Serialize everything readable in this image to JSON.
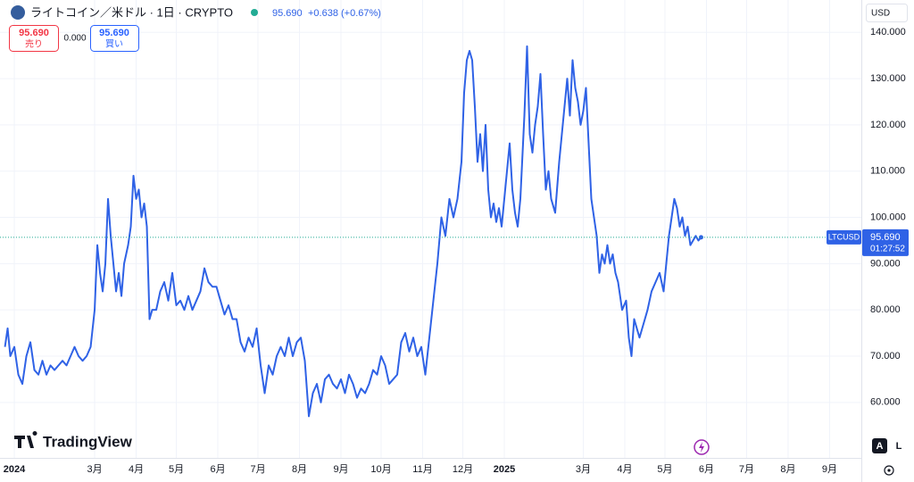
{
  "header": {
    "title": "ライトコイン／米ドル · 1日 · CRYPTO",
    "price": "95.690",
    "change": "+0.638 (+0.67%)"
  },
  "trade": {
    "sell_price": "95.690",
    "sell_label": "売り",
    "spread": "0.000",
    "buy_price": "95.690",
    "buy_label": "買い"
  },
  "currency": "USD",
  "branding": "TradingView",
  "buttons": [
    "A",
    "L"
  ],
  "chart_data": {
    "type": "line",
    "series": [
      {
        "name": "LTCUSD",
        "color": "#2f62e6",
        "values": [
          72,
          76,
          70,
          72,
          66,
          64,
          70,
          73,
          67,
          66,
          69,
          66,
          68,
          67,
          68,
          69,
          68,
          70,
          72,
          70,
          69,
          70,
          72,
          80,
          94,
          88,
          84,
          90,
          104,
          96,
          90,
          84,
          88,
          83,
          90,
          94,
          98,
          109,
          104,
          106,
          100,
          103,
          98,
          78,
          80,
          80,
          84,
          86,
          82,
          88,
          81,
          82,
          80,
          83,
          80,
          82,
          84,
          89,
          86,
          85,
          85,
          82,
          79,
          81,
          78,
          78,
          73,
          71,
          74,
          72,
          76,
          68,
          62,
          68,
          66,
          70,
          72,
          70,
          74,
          70,
          73,
          74,
          69,
          57,
          62,
          64,
          60,
          65,
          66,
          64,
          63,
          65,
          62,
          66,
          64,
          61,
          63,
          62,
          64,
          67,
          66,
          70,
          68,
          64,
          65,
          66,
          73,
          75,
          71,
          74,
          70,
          72,
          66,
          74,
          82,
          90,
          100,
          96,
          104,
          100,
          104,
          112,
          127,
          134,
          136,
          134,
          124,
          112,
          118,
          110,
          120,
          106,
          100,
          103,
          99,
          102,
          98,
          104,
          110,
          116,
          106,
          101,
          98,
          104,
          122,
          137,
          118,
          114,
          120,
          124,
          131,
          118,
          106,
          110,
          104,
          101,
          112,
          118,
          124,
          130,
          122,
          134,
          128,
          125,
          120,
          123,
          128,
          116,
          104,
          100,
          96,
          88,
          92,
          90,
          94,
          90,
          92,
          88,
          86,
          80,
          82,
          74,
          70,
          78,
          76,
          74,
          77,
          80,
          84,
          86,
          88,
          84,
          90,
          96,
          100,
          104,
          102,
          98,
          100,
          96,
          98,
          94,
          95,
          96,
          95,
          95.69
        ]
      }
    ],
    "x": [
      -7,
      -5,
      -3,
      0,
      3,
      6,
      9,
      12,
      15,
      18,
      21,
      24,
      27,
      30,
      33,
      36,
      39,
      42,
      45,
      48,
      51,
      54,
      57,
      60,
      62,
      64,
      66,
      68,
      70,
      72,
      74,
      76,
      78,
      80,
      82,
      85,
      87,
      89,
      91,
      93,
      95,
      97,
      99,
      101,
      103,
      106,
      109,
      112,
      115,
      118,
      121,
      124,
      127,
      130,
      133,
      136,
      139,
      142,
      145,
      148,
      151,
      154,
      157,
      160,
      163,
      166,
      169,
      172,
      175,
      178,
      181,
      184,
      187,
      190,
      193,
      196,
      199,
      202,
      205,
      208,
      211,
      214,
      217,
      220,
      223,
      226,
      229,
      232,
      235,
      238,
      241,
      244,
      247,
      250,
      253,
      256,
      259,
      262,
      265,
      268,
      271,
      274,
      277,
      280,
      283,
      286,
      289,
      292,
      295,
      298,
      301,
      304,
      307,
      310,
      313,
      316,
      319,
      322,
      325,
      328,
      331,
      334,
      336,
      338,
      340,
      342,
      344,
      346,
      348,
      350,
      352,
      354,
      356,
      358,
      360,
      362,
      364,
      366,
      368,
      370,
      372,
      374,
      376,
      378,
      381,
      383,
      385,
      387,
      389,
      391,
      393,
      395,
      397,
      399,
      401,
      404,
      407,
      409,
      411,
      413,
      415,
      417,
      419,
      421,
      423,
      425,
      427,
      429,
      431,
      433,
      435,
      437,
      439,
      441,
      443,
      445,
      447,
      449,
      451,
      454,
      457,
      459,
      461,
      463,
      465,
      467,
      470,
      473,
      476,
      479,
      482,
      485,
      487,
      489,
      491,
      493,
      495,
      497,
      499,
      501,
      503,
      505,
      507,
      509,
      511,
      513
    ],
    "xlim": [
      -10.7,
      632.7
    ],
    "xticks": [
      {
        "value": 0,
        "label": "2024"
      },
      {
        "value": 60,
        "label": "3月"
      },
      {
        "value": 91,
        "label": "4月"
      },
      {
        "value": 121,
        "label": "5月"
      },
      {
        "value": 152,
        "label": "6月"
      },
      {
        "value": 182,
        "label": "7月"
      },
      {
        "value": 213,
        "label": "8月"
      },
      {
        "value": 244,
        "label": "9月"
      },
      {
        "value": 274,
        "label": "10月"
      },
      {
        "value": 305,
        "label": "11月"
      },
      {
        "value": 335,
        "label": "12月"
      },
      {
        "value": 366,
        "label": "2025"
      },
      {
        "value": 425,
        "label": "3月"
      },
      {
        "value": 456,
        "label": "4月"
      },
      {
        "value": 486,
        "label": "5月"
      },
      {
        "value": 517,
        "label": "6月"
      },
      {
        "value": 547,
        "label": "7月"
      },
      {
        "value": 578,
        "label": "8月"
      },
      {
        "value": 609,
        "label": "9月"
      }
    ],
    "ylim": [
      48,
      147
    ],
    "yticks": [
      {
        "value": 60,
        "label": "60.000"
      },
      {
        "value": 70,
        "label": "70.000"
      },
      {
        "value": 80,
        "label": "80.000"
      },
      {
        "value": 90,
        "label": "90.000"
      },
      {
        "value": 100,
        "label": "100.000"
      },
      {
        "value": 110,
        "label": "110.000"
      },
      {
        "value": 120,
        "label": "120.000"
      },
      {
        "value": 130,
        "label": "130.000"
      },
      {
        "value": 140,
        "label": "140.000"
      }
    ],
    "grid": true,
    "last_price": {
      "value": 95.69,
      "label": "95.690"
    },
    "countdown": "01:27:52"
  }
}
